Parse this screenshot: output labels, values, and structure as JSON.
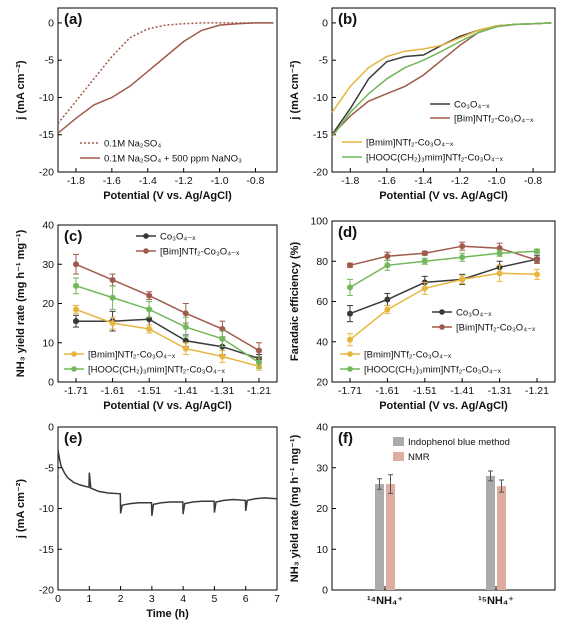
{
  "colors": {
    "cobalt": "#3a3a3a",
    "bim": "#a05a4b",
    "bmim": "#e7b540",
    "hooc": "#72b85a",
    "indophenol": "#a9acaa",
    "nmr": "#e0aca0"
  },
  "chart_data": [
    {
      "panel": "(a)",
      "type": "line",
      "xlabel": "Potential (V vs. Ag/AgCl)",
      "ylabel": "j (mA cm⁻²)",
      "xlim": [
        -1.9,
        -0.68
      ],
      "ylim": [
        -20,
        2
      ],
      "xticks": [
        "-1.8",
        "-1.6",
        "-1.4",
        "-1.2",
        "-1.0",
        "-0.8"
      ],
      "yticks": [
        "-20",
        "-15",
        "-10",
        "-5",
        "0"
      ],
      "legend_position": "bottom-right",
      "series": [
        {
          "name": "0.1M Na₂SO₄",
          "style": "dotted",
          "x": [
            -1.9,
            -1.8,
            -1.7,
            -1.6,
            -1.5,
            -1.4,
            -1.3,
            -1.2,
            -1.1,
            -1.0,
            -0.9,
            -0.8,
            -0.7
          ],
          "y": [
            -13.5,
            -10.5,
            -7.5,
            -4.5,
            -2.0,
            -0.8,
            -0.3,
            -0.1,
            0.0,
            0.0,
            0.0,
            0.0,
            0.0
          ]
        },
        {
          "name": "0.1M Na₂SO₄ + 500 ppm NaNO₃",
          "style": "solid",
          "x": [
            -1.9,
            -1.8,
            -1.7,
            -1.6,
            -1.5,
            -1.4,
            -1.3,
            -1.2,
            -1.1,
            -1.0,
            -0.9,
            -0.8,
            -0.7
          ],
          "y": [
            -14.8,
            -12.8,
            -11.0,
            -10.0,
            -8.5,
            -6.5,
            -4.5,
            -2.5,
            -1.0,
            -0.3,
            -0.1,
            0.0,
            0.0
          ]
        }
      ]
    },
    {
      "panel": "(b)",
      "type": "line",
      "xlabel": "Potential (V vs. Ag/AgCl)",
      "ylabel": "j (mA cm⁻²)",
      "xlim": [
        -1.9,
        -0.68
      ],
      "ylim": [
        -20,
        2
      ],
      "xticks": [
        "-1.8",
        "-1.6",
        "-1.4",
        "-1.2",
        "-1.0",
        "-0.8"
      ],
      "yticks": [
        "-20",
        "-15",
        "-10",
        "-5",
        "0"
      ],
      "series": [
        {
          "name": "Co₃O₄₋ₓ",
          "x": [
            -1.9,
            -1.8,
            -1.7,
            -1.6,
            -1.5,
            -1.4,
            -1.3,
            -1.2,
            -1.1,
            -1.0,
            -0.9,
            -0.8,
            -0.7
          ],
          "y": [
            -15.0,
            -11.5,
            -7.5,
            -5.2,
            -4.5,
            -4.3,
            -3.0,
            -1.8,
            -1.0,
            -0.4,
            -0.2,
            -0.1,
            0.0
          ]
        },
        {
          "name": "[Bim]NTf₂-Co₃O₄₋ₓ",
          "x": [
            -1.9,
            -1.8,
            -1.7,
            -1.6,
            -1.5,
            -1.4,
            -1.3,
            -1.2,
            -1.1,
            -1.0,
            -0.9,
            -0.8,
            -0.7
          ],
          "y": [
            -15.0,
            -12.5,
            -10.5,
            -9.5,
            -8.5,
            -7.0,
            -5.0,
            -3.0,
            -1.3,
            -0.5,
            -0.2,
            -0.1,
            0.0
          ]
        },
        {
          "name": "[Bmim]NTf₂-Co₃O₄₋ₓ",
          "x": [
            -1.9,
            -1.8,
            -1.7,
            -1.6,
            -1.5,
            -1.4,
            -1.3,
            -1.2,
            -1.1,
            -1.0,
            -0.9,
            -0.8,
            -0.7
          ],
          "y": [
            -12.0,
            -8.5,
            -6.0,
            -4.5,
            -3.8,
            -3.5,
            -3.0,
            -2.0,
            -1.0,
            -0.4,
            -0.2,
            -0.1,
            0.0
          ]
        },
        {
          "name": "[HOOC(CH₂)₃mim]NTf₂-Co₃O₄₋ₓ",
          "x": [
            -1.9,
            -1.8,
            -1.7,
            -1.6,
            -1.5,
            -1.4,
            -1.3,
            -1.2,
            -1.1,
            -1.0,
            -0.9,
            -0.8,
            -0.7
          ],
          "y": [
            -15.3,
            -12.0,
            -9.5,
            -7.5,
            -6.0,
            -5.0,
            -3.8,
            -2.5,
            -1.3,
            -0.5,
            -0.2,
            -0.1,
            0.0
          ]
        }
      ]
    },
    {
      "panel": "(c)",
      "type": "line",
      "xlabel": "Potential (V vs. Ag/AgCl)",
      "ylabel": "NH₃ yield rate (mg h⁻¹ mg⁻¹)",
      "categories": [
        "-1.71",
        "-1.61",
        "-1.51",
        "-1.41",
        "-1.31",
        "-1.21"
      ],
      "ylim": [
        0,
        40
      ],
      "yticks": [
        "0",
        "10",
        "20",
        "30",
        "40"
      ],
      "series": [
        {
          "name": "Co₃O₄₋ₓ",
          "values": [
            15.5,
            15.5,
            16.0,
            10.5,
            9.0,
            6.0
          ],
          "errors": [
            1.5,
            2.5,
            2.5,
            1.5,
            2.0,
            1.0
          ]
        },
        {
          "name": "[Bim]NTf₂-Co₃O₄₋ₓ",
          "values": [
            30.0,
            26.0,
            22.0,
            17.5,
            13.5,
            8.0
          ],
          "errors": [
            2.5,
            1.5,
            1.0,
            2.5,
            2.0,
            2.0
          ]
        },
        {
          "name": "[Bmim]NTf₂-Co₃O₄₋ₓ",
          "values": [
            18.5,
            15.0,
            13.5,
            8.5,
            6.5,
            4.0
          ],
          "errors": [
            1.0,
            1.5,
            1.0,
            1.5,
            1.5,
            1.0
          ]
        },
        {
          "name": "[HOOC(CH₂)₃mim]NTf₂-Co₃O₄₋ₓ",
          "values": [
            24.5,
            21.5,
            18.5,
            14.0,
            11.0,
            5.0
          ],
          "errors": [
            2.0,
            3.0,
            2.0,
            2.5,
            2.0,
            1.5
          ]
        }
      ]
    },
    {
      "panel": "(d)",
      "type": "line",
      "xlabel": "Potential (V vs. Ag/AgCl)",
      "ylabel": "Faradaic efficiency (%)",
      "categories": [
        "-1.71",
        "-1.61",
        "-1.51",
        "-1.41",
        "-1.31",
        "-1.21"
      ],
      "ylim": [
        20,
        100
      ],
      "yticks": [
        "20",
        "40",
        "60",
        "80",
        "100"
      ],
      "series": [
        {
          "name": "Co₃O₄₋ₓ",
          "values": [
            54.0,
            61.0,
            69.5,
            71.0,
            77.0,
            81.0
          ],
          "errors": [
            4.0,
            3.0,
            3.0,
            2.5,
            3.0,
            2.0
          ]
        },
        {
          "name": "[Bim]NTf₂-Co₃O₄₋ₓ",
          "values": [
            78.0,
            82.5,
            84.0,
            87.5,
            86.5,
            80.5
          ],
          "errors": [
            1.0,
            2.0,
            1.0,
            2.0,
            2.5,
            1.5
          ]
        },
        {
          "name": "[Bmim]NTf₂-Co₃O₄₋ₓ",
          "values": [
            41.0,
            56.0,
            66.5,
            71.0,
            74.0,
            73.5
          ],
          "errors": [
            3.0,
            2.0,
            3.0,
            2.0,
            4.0,
            2.5
          ]
        },
        {
          "name": "[HOOC(CH₂)₃mim]NTf₂-Co₃O₄₋ₓ",
          "values": [
            67.0,
            78.0,
            80.0,
            82.0,
            84.0,
            85.0
          ],
          "errors": [
            4.0,
            2.5,
            1.5,
            2.0,
            1.5,
            1.0
          ]
        }
      ]
    },
    {
      "panel": "(e)",
      "type": "line",
      "xlabel": "Time (h)",
      "ylabel": "j (mA cm⁻²)",
      "xlim": [
        0,
        7
      ],
      "ylim": [
        -20,
        0
      ],
      "xticks": [
        "0",
        "1",
        "2",
        "3",
        "4",
        "5",
        "6",
        "7"
      ],
      "yticks": [
        "-20",
        "-15",
        "-10",
        "-5",
        "0"
      ],
      "series": [
        {
          "name": "",
          "x": [
            0.0,
            0.05,
            0.1,
            0.2,
            0.3,
            0.5,
            0.7,
            0.99,
            1.0,
            1.05,
            1.3,
            1.6,
            1.99,
            2.0,
            2.05,
            2.3,
            2.6,
            2.99,
            3.0,
            3.05,
            3.3,
            3.6,
            3.99,
            4.0,
            4.05,
            4.3,
            4.6,
            4.99,
            5.0,
            5.05,
            5.3,
            5.6,
            5.99,
            6.0,
            6.05,
            6.3,
            6.6,
            7.0
          ],
          "y": [
            -2.8,
            -4.0,
            -4.8,
            -5.6,
            -6.2,
            -6.8,
            -7.1,
            -7.4,
            -5.6,
            -7.5,
            -7.9,
            -8.1,
            -8.2,
            -10.6,
            -9.6,
            -9.4,
            -9.3,
            -9.3,
            -10.9,
            -9.5,
            -9.3,
            -9.2,
            -9.2,
            -10.7,
            -9.4,
            -9.2,
            -9.1,
            -9.1,
            -10.5,
            -9.2,
            -9.0,
            -8.9,
            -9.0,
            -10.3,
            -9.0,
            -8.8,
            -8.7,
            -8.8
          ]
        }
      ]
    },
    {
      "panel": "(f)",
      "type": "bar",
      "xlabel": "",
      "ylabel": "NH₃ yield rate (mg h⁻¹ mg⁻¹)",
      "categories": [
        "¹⁴NH₄⁺",
        "¹⁵NH₄⁺"
      ],
      "ylim": [
        0,
        40
      ],
      "yticks": [
        "0",
        "10",
        "20",
        "30",
        "40"
      ],
      "legend_position": "top",
      "series": [
        {
          "name": "Indophenol blue method",
          "values": [
            26.0,
            28.0
          ],
          "errors": [
            1.3,
            1.2
          ]
        },
        {
          "name": "NMR",
          "values": [
            26.0,
            25.5
          ],
          "errors": [
            2.3,
            1.5
          ]
        }
      ]
    }
  ]
}
